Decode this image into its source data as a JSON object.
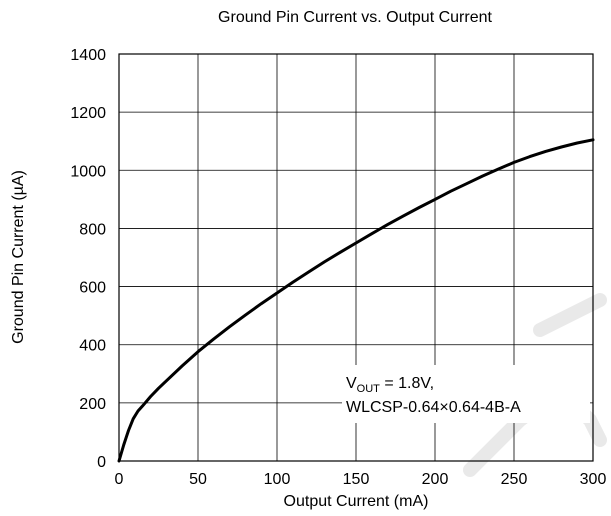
{
  "chart_data": {
    "type": "line",
    "title": "Ground Pin Current vs. Output Current",
    "xlabel": "Output Current (mA)",
    "ylabel": "Ground Pin Current (µA)",
    "xlim": [
      0,
      300
    ],
    "ylim": [
      0,
      1400
    ],
    "xticks": [
      0,
      50,
      100,
      150,
      200,
      250,
      300
    ],
    "yticks": [
      0,
      200,
      400,
      600,
      800,
      1000,
      1200,
      1400
    ],
    "grid": true,
    "annotation": {
      "v_main": "V",
      "v_sub": "OUT",
      "v_rest": " = 1.8V,",
      "line2": "WLCSP-0.64×0.64-4B-A"
    },
    "series": [
      {
        "x": [
          0,
          3,
          6,
          9,
          12,
          15,
          20,
          25,
          30,
          40,
          50,
          60,
          70,
          80,
          90,
          100,
          110,
          120,
          130,
          140,
          150,
          160,
          170,
          180,
          190,
          200,
          210,
          220,
          230,
          240,
          250,
          260,
          270,
          280,
          290,
          300
        ],
        "y": [
          0,
          55,
          105,
          145,
          172,
          190,
          222,
          250,
          276,
          327,
          376,
          420,
          462,
          502,
          541,
          578,
          615,
          650,
          685,
          718,
          750,
          782,
          813,
          843,
          872,
          900,
          928,
          954,
          980,
          1004,
          1027,
          1047,
          1065,
          1080,
          1094,
          1105
        ]
      }
    ]
  }
}
